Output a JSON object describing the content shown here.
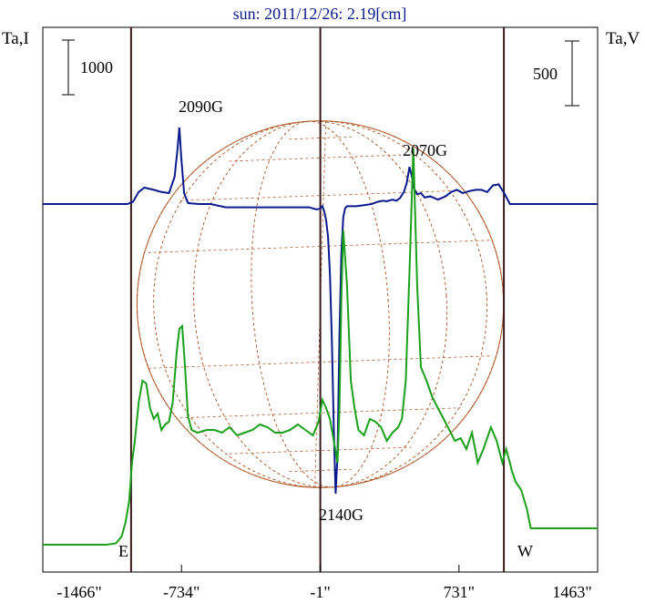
{
  "chart_data": {
    "type": "line",
    "title": "sun: 2011/12/26: 2.19[cm]",
    "left_axis_label": "Ta,I",
    "right_axis_label": "Ta,V",
    "x_ticks": [
      "-1466\"",
      "-734\"",
      "-1\"",
      "731\"",
      "1463\""
    ],
    "x_tick_values": [
      -1466,
      -734,
      -1,
      731,
      1463
    ],
    "xlim": [
      -1466,
      1463
    ],
    "limb_labels": {
      "east": "E",
      "west": "W"
    },
    "scale_bars": [
      {
        "label": "1000",
        "axis": "left"
      },
      {
        "label": "500",
        "axis": "right"
      }
    ],
    "vertical_markers_arcsec": [
      -1000,
      -1,
      968
    ],
    "annotations": [
      {
        "label": "2090G",
        "x": -745
      },
      {
        "label": "2140G",
        "x": 90
      },
      {
        "label": "2070G",
        "x": 440
      }
    ],
    "solar_disk": {
      "center_x": -1,
      "radius_arcsec": 968,
      "color": "#b05a2a"
    },
    "series": [
      {
        "color": "#0a1a8c",
        "x": [
          -1466,
          -1100,
          -1020,
          -990,
          -960,
          -930,
          -880,
          -840,
          -800,
          -770,
          -755,
          -745,
          -735,
          -720,
          -700,
          -680,
          -640,
          -580,
          -500,
          -420,
          -340,
          -260,
          -200,
          -150,
          -110,
          -80,
          -60,
          -40,
          -20,
          0,
          10,
          20,
          30,
          40,
          50,
          60,
          70,
          80,
          90,
          100,
          110,
          120,
          130,
          140,
          160,
          190,
          230,
          270,
          300,
          330,
          350,
          380,
          400,
          420,
          440,
          455,
          470,
          480,
          495,
          510,
          530,
          550,
          580,
          620,
          660,
          690,
          720,
          750,
          790,
          820,
          850,
          880,
          910,
          940,
          970,
          1000,
          1050,
          1100,
          1463
        ],
        "y": [
          0,
          0,
          0,
          20,
          110,
          150,
          130,
          110,
          100,
          250,
          500,
          700,
          420,
          100,
          10,
          5,
          0,
          0,
          -30,
          -30,
          -30,
          -30,
          -30,
          -30,
          -30,
          -30,
          -30,
          -40,
          -50,
          -40,
          -20,
          -70,
          -150,
          -300,
          -650,
          -1250,
          -2050,
          -2650,
          -2300,
          -1200,
          -450,
          -120,
          -40,
          -20,
          -20,
          -20,
          -10,
          0,
          20,
          30,
          25,
          40,
          30,
          55,
          110,
          190,
          340,
          270,
          140,
          90,
          100,
          60,
          70,
          40,
          70,
          110,
          130,
          100,
          120,
          130,
          130,
          110,
          170,
          180,
          100,
          0,
          0,
          0,
          0
        ]
      },
      {
        "color": "#1aa01a",
        "x": [
          -1466,
          -1130,
          -1080,
          -1050,
          -1030,
          -1010,
          -995,
          -980,
          -960,
          -940,
          -920,
          -900,
          -880,
          -860,
          -840,
          -820,
          -800,
          -780,
          -760,
          -745,
          -730,
          -715,
          -700,
          -680,
          -650,
          -600,
          -560,
          -520,
          -480,
          -440,
          -400,
          -360,
          -320,
          -280,
          -240,
          -200,
          -160,
          -120,
          -80,
          -40,
          -10,
          10,
          30,
          50,
          70,
          90,
          100,
          110,
          120,
          140,
          160,
          180,
          200,
          230,
          260,
          290,
          320,
          350,
          380,
          410,
          430,
          450,
          470,
          490,
          510,
          530,
          560,
          590,
          620,
          650,
          680,
          710,
          740,
          770,
          800,
          830,
          860,
          900,
          930,
          960,
          980,
          1000,
          1010,
          1030,
          1060,
          1090,
          1110,
          1150,
          1463
        ],
        "y": [
          0,
          0,
          5,
          30,
          80,
          160,
          300,
          380,
          520,
          600,
          590,
          500,
          460,
          480,
          420,
          440,
          450,
          520,
          700,
          790,
          800,
          650,
          470,
          420,
          410,
          420,
          420,
          410,
          430,
          400,
          410,
          420,
          440,
          430,
          410,
          410,
          420,
          440,
          420,
          400,
          450,
          530,
          500,
          460,
          380,
          300,
          500,
          900,
          1150,
          950,
          600,
          500,
          420,
          400,
          460,
          450,
          430,
          380,
          410,
          430,
          460,
          600,
          1000,
          1450,
          950,
          650,
          600,
          540,
          500,
          460,
          420,
          380,
          390,
          350,
          410,
          300,
          350,
          430,
          380,
          300,
          350,
          300,
          270,
          230,
          200,
          130,
          60,
          60,
          60
        ]
      }
    ]
  }
}
